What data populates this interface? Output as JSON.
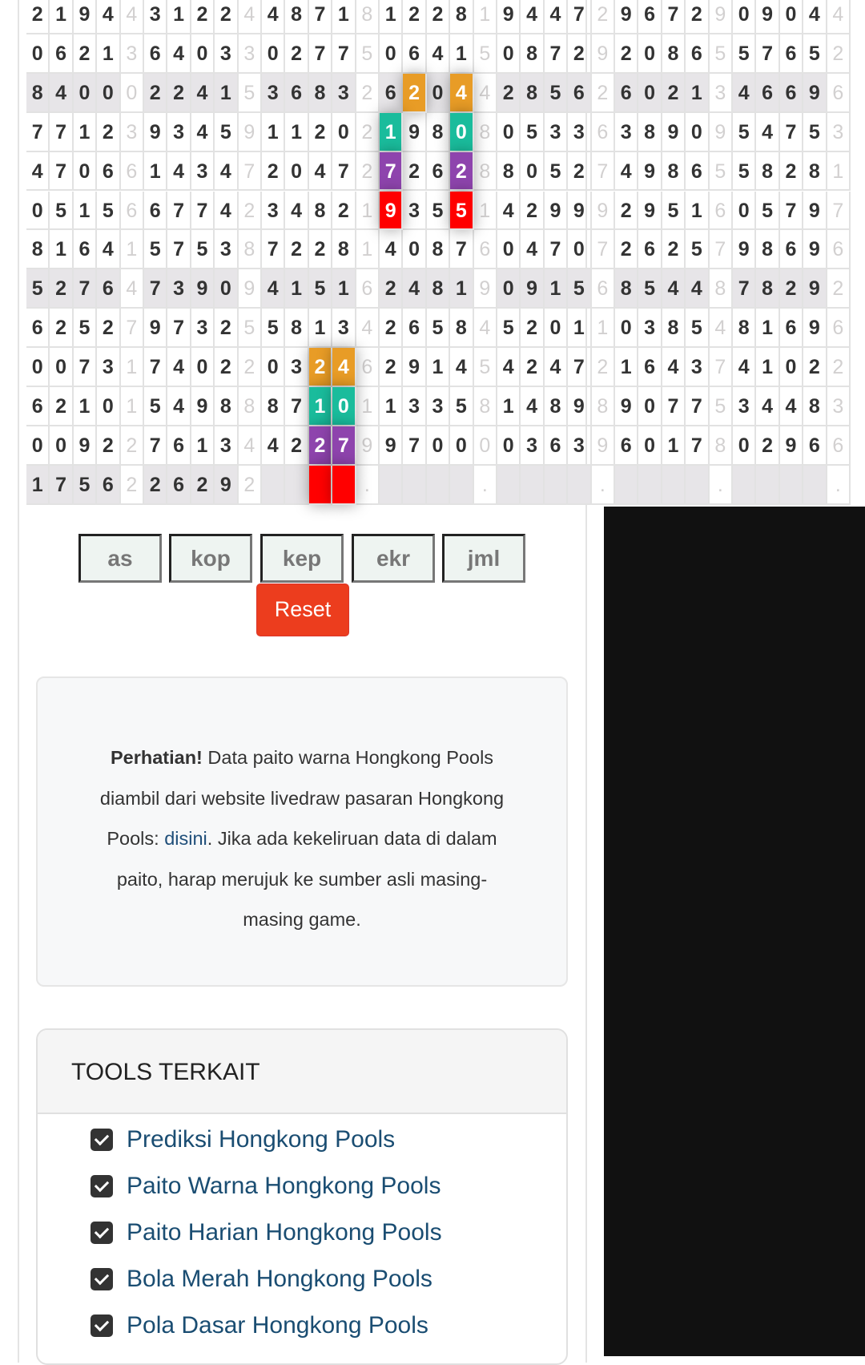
{
  "paito": {
    "colors": {
      "orange": "#e89c26",
      "teal": "#1abc9c",
      "purple": "#8e44ad",
      "red": "#ff0000"
    },
    "shaded_rows": [
      2,
      7,
      12
    ],
    "rows": [
      [
        [
          "2194",
          "4"
        ],
        [
          "3122",
          "4"
        ],
        [
          "4871",
          "8"
        ],
        [
          "1228",
          "1"
        ],
        [
          "9447",
          "2"
        ],
        [
          "9672",
          "9"
        ],
        [
          "0904",
          "4"
        ]
      ],
      [
        [
          "0621",
          "3"
        ],
        [
          "6403",
          "3"
        ],
        [
          "0277",
          "5"
        ],
        [
          "0641",
          "5"
        ],
        [
          "0872",
          "9"
        ],
        [
          "2086",
          "5"
        ],
        [
          "5765",
          "2"
        ]
      ],
      [
        [
          "8400",
          "0"
        ],
        [
          "2241",
          "5"
        ],
        [
          "3683",
          "2"
        ],
        [
          "6204",
          "4"
        ],
        [
          "2856",
          "2"
        ],
        [
          "6021",
          "3"
        ],
        [
          "4669",
          "6"
        ]
      ],
      [
        [
          "7712",
          "3"
        ],
        [
          "9345",
          "9"
        ],
        [
          "1120",
          "2"
        ],
        [
          "1980",
          "8"
        ],
        [
          "0533",
          "6"
        ],
        [
          "3890",
          "9"
        ],
        [
          "5475",
          "3"
        ]
      ],
      [
        [
          "4706",
          "6"
        ],
        [
          "1434",
          "7"
        ],
        [
          "2047",
          "2"
        ],
        [
          "7262",
          "8"
        ],
        [
          "8052",
          "7"
        ],
        [
          "4986",
          "5"
        ],
        [
          "5828",
          "1"
        ]
      ],
      [
        [
          "0515",
          "6"
        ],
        [
          "6774",
          "2"
        ],
        [
          "3482",
          "1"
        ],
        [
          "9355",
          "1"
        ],
        [
          "4299",
          "9"
        ],
        [
          "2951",
          "6"
        ],
        [
          "0579",
          "7"
        ]
      ],
      [
        [
          "8164",
          "1"
        ],
        [
          "5753",
          "8"
        ],
        [
          "7228",
          "1"
        ],
        [
          "4087",
          "6"
        ],
        [
          "0470",
          "7"
        ],
        [
          "2625",
          "7"
        ],
        [
          "9869",
          "6"
        ]
      ],
      [
        [
          "5276",
          "4"
        ],
        [
          "7390",
          "9"
        ],
        [
          "4151",
          "6"
        ],
        [
          "2481",
          "9"
        ],
        [
          "0915",
          "6"
        ],
        [
          "8544",
          "8"
        ],
        [
          "7829",
          "2"
        ]
      ],
      [
        [
          "6252",
          "7"
        ],
        [
          "9732",
          "5"
        ],
        [
          "5813",
          "4"
        ],
        [
          "2658",
          "4"
        ],
        [
          "5201",
          "1"
        ],
        [
          "0385",
          "4"
        ],
        [
          "8169",
          "6"
        ]
      ],
      [
        [
          "0073",
          "1"
        ],
        [
          "7402",
          "2"
        ],
        [
          "0324",
          "6"
        ],
        [
          "2914",
          "5"
        ],
        [
          "4247",
          "2"
        ],
        [
          "1643",
          "7"
        ],
        [
          "4102",
          "2"
        ]
      ],
      [
        [
          "6210",
          "1"
        ],
        [
          "5498",
          "8"
        ],
        [
          "8710",
          "1"
        ],
        [
          "1335",
          "8"
        ],
        [
          "1489",
          "8"
        ],
        [
          "9077",
          "5"
        ],
        [
          "3448",
          "3"
        ]
      ],
      [
        [
          "0092",
          "2"
        ],
        [
          "7613",
          "4"
        ],
        [
          "4227",
          "9"
        ],
        [
          "9700",
          "0"
        ],
        [
          "0363",
          "9"
        ],
        [
          "6017",
          "8"
        ],
        [
          "0296",
          "6"
        ]
      ],
      [
        [
          "1756",
          "2"
        ],
        [
          "2629",
          "2"
        ],
        [
          "    ",
          "."
        ],
        [
          "    ",
          "."
        ],
        [
          "    ",
          "."
        ],
        [
          "    ",
          "."
        ],
        [
          "    ",
          "."
        ]
      ]
    ],
    "highlights": [
      {
        "row": 2,
        "group": 3,
        "pos": 1,
        "color": "orange"
      },
      {
        "row": 2,
        "group": 3,
        "pos": 3,
        "color": "orange"
      },
      {
        "row": 3,
        "group": 3,
        "pos": 0,
        "color": "teal"
      },
      {
        "row": 3,
        "group": 3,
        "pos": 3,
        "color": "teal"
      },
      {
        "row": 4,
        "group": 3,
        "pos": 0,
        "color": "purple"
      },
      {
        "row": 4,
        "group": 3,
        "pos": 3,
        "color": "purple"
      },
      {
        "row": 5,
        "group": 3,
        "pos": 0,
        "color": "red"
      },
      {
        "row": 5,
        "group": 3,
        "pos": 3,
        "color": "red"
      },
      {
        "row": 9,
        "group": 2,
        "pos": 2,
        "color": "orange"
      },
      {
        "row": 9,
        "group": 2,
        "pos": 3,
        "color": "orange"
      },
      {
        "row": 10,
        "group": 2,
        "pos": 2,
        "color": "teal"
      },
      {
        "row": 10,
        "group": 2,
        "pos": 3,
        "color": "teal"
      },
      {
        "row": 11,
        "group": 2,
        "pos": 2,
        "color": "purple"
      },
      {
        "row": 11,
        "group": 2,
        "pos": 3,
        "color": "purple"
      },
      {
        "row": 12,
        "group": 2,
        "pos": 2,
        "color": "red"
      },
      {
        "row": 12,
        "group": 2,
        "pos": 3,
        "color": "red"
      }
    ]
  },
  "buttons": {
    "as": "as",
    "kop": "kop",
    "kep": "kep",
    "ekr": "ekr",
    "jml": "jml",
    "reset": "Reset"
  },
  "notice": {
    "bold": "Perhatian!",
    "text1": " Data paito warna Hongkong Pools diambil dari website livedraw pasaran Hongkong Pools: ",
    "link": "disini",
    "text2": ". Jika ada kekeliruan data di dalam paito, harap merujuk ke sumber asli masing-masing game."
  },
  "tools": {
    "title": "TOOLS TERKAIT",
    "items": [
      {
        "label": "Prediksi Hongkong Pools",
        "icon": "check-square-icon"
      },
      {
        "label": "Paito Warna Hongkong Pools",
        "icon": "check-square-icon"
      },
      {
        "label": "Paito Harian Hongkong Pools",
        "icon": "check-square-icon"
      },
      {
        "label": "Bola Merah Hongkong Pools",
        "icon": "check-square-icon"
      },
      {
        "label": "Pola Dasar Hongkong Pools",
        "icon": "check-square-icon"
      }
    ]
  }
}
